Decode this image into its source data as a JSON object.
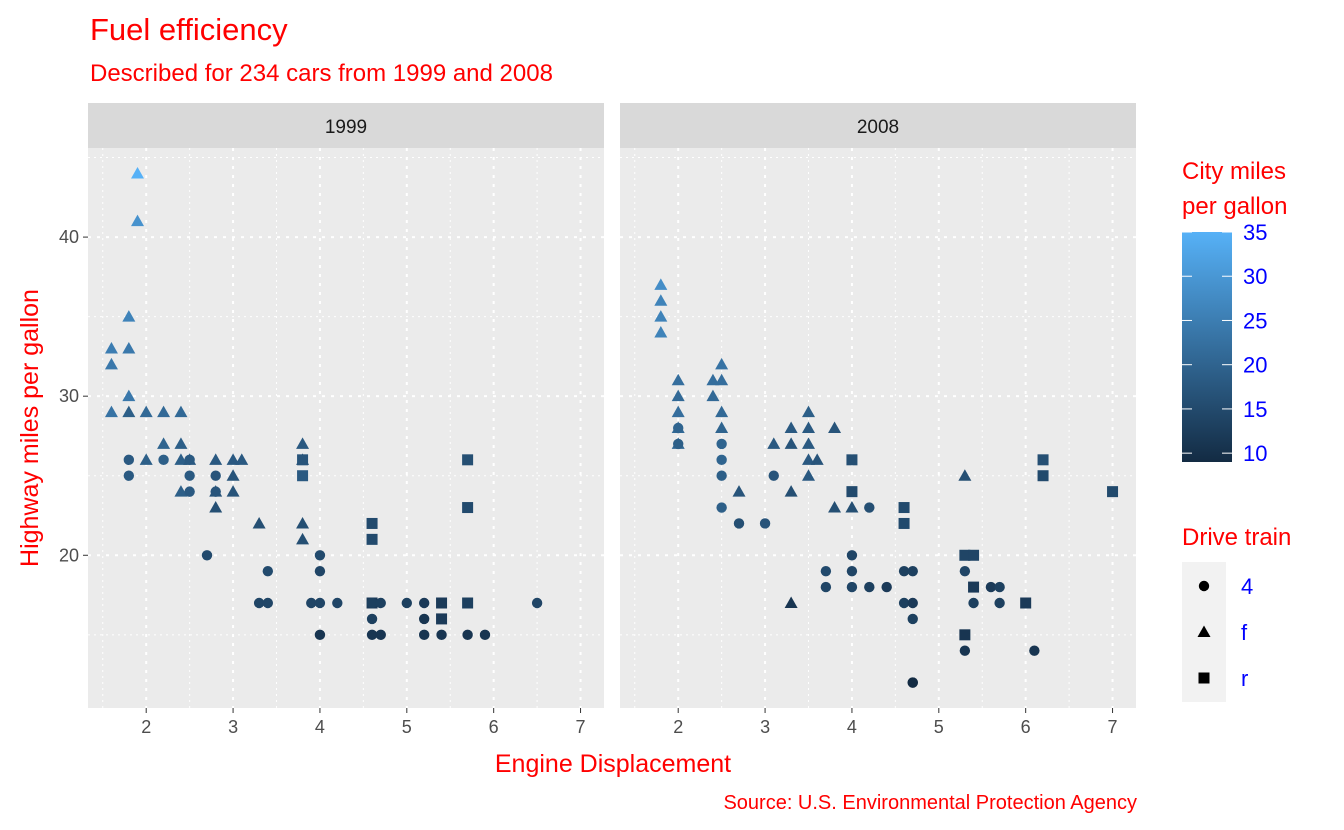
{
  "chart_data": {
    "type": "scatter",
    "title": "Fuel efficiency",
    "subtitle": "Described for 234 cars from 1999 and 2008",
    "xlabel": "Engine Displacement",
    "ylabel": "Highway miles per gallon",
    "caption": "Source: U.S. Environmental Protection Agency",
    "xlim": [
      1.6,
      7
    ],
    "ylim": [
      12,
      44
    ],
    "x_ticks": [
      2,
      3,
      4,
      5,
      6,
      7
    ],
    "y_ticks": [
      20,
      30,
      40
    ],
    "grid": true,
    "colors": {
      "title": "#FF0000",
      "legend_labels": "#0000FF",
      "low": "#132B43",
      "high": "#56B1F7",
      "panel": "#EBEBEB",
      "strip": "#D9D9D9"
    },
    "color_legend": {
      "title_line1": "City miles",
      "title_line2": "per gallon",
      "ticks": [
        10,
        15,
        20,
        25,
        30,
        35
      ],
      "range": [
        9,
        35
      ]
    },
    "shape_legend": {
      "title": "Drive train",
      "entries": [
        {
          "label": "4",
          "shape": "circle"
        },
        {
          "label": "f",
          "shape": "triangle"
        },
        {
          "label": "r",
          "shape": "square"
        }
      ]
    },
    "point_fields": [
      "displ",
      "hwy",
      "drv",
      "cty"
    ],
    "facets": [
      {
        "label": "1999",
        "points": [
          [
            1.9,
            44,
            "f",
            35
          ],
          [
            1.9,
            41,
            "f",
            29
          ],
          [
            1.8,
            35,
            "f",
            26
          ],
          [
            1.6,
            33,
            "f",
            25
          ],
          [
            1.8,
            33,
            "f",
            24
          ],
          [
            1.6,
            32,
            "f",
            24
          ],
          [
            1.8,
            30,
            "f",
            24
          ],
          [
            1.6,
            29,
            "f",
            23
          ],
          [
            1.8,
            29,
            "f",
            19
          ],
          [
            2.0,
            29,
            "f",
            21
          ],
          [
            2.2,
            29,
            "f",
            21
          ],
          [
            2.4,
            29,
            "f",
            21
          ],
          [
            2.2,
            27,
            "f",
            20
          ],
          [
            2.4,
            27,
            "f",
            19
          ],
          [
            1.8,
            26,
            "4",
            18
          ],
          [
            2.0,
            26,
            "f",
            19
          ],
          [
            2.2,
            26,
            "4",
            19
          ],
          [
            2.4,
            26,
            "f",
            19
          ],
          [
            2.5,
            26,
            "f",
            18
          ],
          [
            2.5,
            26,
            "4",
            18
          ],
          [
            2.8,
            26,
            "f",
            18
          ],
          [
            3.0,
            26,
            "f",
            18
          ],
          [
            3.1,
            26,
            "f",
            18
          ],
          [
            3.8,
            27,
            "f",
            18
          ],
          [
            3.8,
            26,
            "f",
            17
          ],
          [
            3.8,
            26,
            "r",
            17
          ],
          [
            1.8,
            25,
            "4",
            18
          ],
          [
            2.5,
            25,
            "4",
            18
          ],
          [
            2.8,
            25,
            "4",
            17
          ],
          [
            3.0,
            25,
            "f",
            17
          ],
          [
            3.8,
            25,
            "r",
            18
          ],
          [
            2.4,
            24,
            "f",
            19
          ],
          [
            2.5,
            24,
            "4",
            18
          ],
          [
            2.8,
            24,
            "f",
            17
          ],
          [
            2.8,
            24,
            "4",
            17
          ],
          [
            3.0,
            24,
            "f",
            17
          ],
          [
            2.8,
            23,
            "f",
            16
          ],
          [
            3.3,
            22,
            "f",
            16
          ],
          [
            3.8,
            22,
            "f",
            16
          ],
          [
            3.8,
            21,
            "f",
            16
          ],
          [
            2.7,
            20,
            "4",
            15
          ],
          [
            4.0,
            20,
            "4",
            15
          ],
          [
            3.4,
            19,
            "4",
            15
          ],
          [
            4.0,
            19,
            "4",
            14
          ],
          [
            3.3,
            17,
            "4",
            14
          ],
          [
            3.4,
            17,
            "4",
            14
          ],
          [
            3.9,
            17,
            "4",
            14
          ],
          [
            4.0,
            17,
            "4",
            14
          ],
          [
            4.2,
            17,
            "4",
            14
          ],
          [
            4.6,
            17,
            "r",
            12
          ],
          [
            4.6,
            17,
            "4",
            13
          ],
          [
            4.7,
            17,
            "4",
            13
          ],
          [
            5.0,
            17,
            "4",
            13
          ],
          [
            5.2,
            17,
            "4",
            12
          ],
          [
            5.4,
            17,
            "r",
            12
          ],
          [
            5.7,
            17,
            "r",
            13
          ],
          [
            6.5,
            17,
            "4",
            14
          ],
          [
            4.6,
            16,
            "4",
            13
          ],
          [
            5.2,
            16,
            "4",
            11
          ],
          [
            5.4,
            16,
            "r",
            12
          ],
          [
            4.0,
            15,
            "4",
            11
          ],
          [
            4.6,
            15,
            "4",
            11
          ],
          [
            4.7,
            15,
            "4",
            11
          ],
          [
            5.2,
            15,
            "4",
            11
          ],
          [
            5.4,
            15,
            "4",
            11
          ],
          [
            5.7,
            15,
            "4",
            11
          ],
          [
            5.9,
            15,
            "4",
            11
          ],
          [
            4.6,
            22,
            "r",
            15
          ],
          [
            4.6,
            21,
            "r",
            15
          ],
          [
            5.7,
            26,
            "r",
            16
          ],
          [
            5.7,
            23,
            "r",
            15
          ]
        ]
      },
      {
        "label": "2008",
        "points": [
          [
            1.8,
            37,
            "f",
            28
          ],
          [
            1.8,
            36,
            "f",
            26
          ],
          [
            1.8,
            35,
            "f",
            26
          ],
          [
            1.8,
            34,
            "f",
            26
          ],
          [
            2.0,
            31,
            "f",
            22
          ],
          [
            2.0,
            30,
            "f",
            21
          ],
          [
            2.0,
            29,
            "f",
            22
          ],
          [
            2.0,
            28,
            "f",
            21
          ],
          [
            2.0,
            28,
            "4",
            20
          ],
          [
            2.0,
            27,
            "f",
            21
          ],
          [
            2.0,
            27,
            "4",
            19
          ],
          [
            2.4,
            31,
            "f",
            22
          ],
          [
            2.4,
            30,
            "f",
            21
          ],
          [
            2.5,
            32,
            "f",
            23
          ],
          [
            2.5,
            31,
            "f",
            22
          ],
          [
            2.5,
            29,
            "f",
            21
          ],
          [
            2.5,
            28,
            "f",
            20
          ],
          [
            2.5,
            27,
            "4",
            20
          ],
          [
            2.5,
            26,
            "4",
            20
          ],
          [
            2.5,
            25,
            "4",
            19
          ],
          [
            2.5,
            23,
            "4",
            19
          ],
          [
            2.7,
            24,
            "f",
            17
          ],
          [
            2.7,
            22,
            "4",
            16
          ],
          [
            3.0,
            22,
            "4",
            17
          ],
          [
            3.1,
            25,
            "4",
            17
          ],
          [
            3.1,
            27,
            "f",
            18
          ],
          [
            3.3,
            28,
            "f",
            18
          ],
          [
            3.3,
            27,
            "f",
            17
          ],
          [
            3.3,
            24,
            "f",
            16
          ],
          [
            3.5,
            29,
            "f",
            19
          ],
          [
            3.5,
            28,
            "f",
            18
          ],
          [
            3.5,
            27,
            "f",
            18
          ],
          [
            3.5,
            26,
            "f",
            18
          ],
          [
            3.6,
            26,
            "f",
            17
          ],
          [
            3.5,
            25,
            "f",
            18
          ],
          [
            3.8,
            28,
            "f",
            17
          ],
          [
            3.8,
            23,
            "f",
            16
          ],
          [
            4.0,
            23,
            "f",
            16
          ],
          [
            4.2,
            23,
            "4",
            16
          ],
          [
            4.0,
            26,
            "r",
            16
          ],
          [
            4.0,
            24,
            "r",
            15
          ],
          [
            4.6,
            23,
            "r",
            15
          ],
          [
            4.6,
            22,
            "r",
            15
          ],
          [
            5.3,
            25,
            "f",
            16
          ],
          [
            6.2,
            26,
            "r",
            16
          ],
          [
            6.2,
            25,
            "r",
            15
          ],
          [
            7.0,
            24,
            "r",
            15
          ],
          [
            3.3,
            17,
            "f",
            11
          ],
          [
            3.7,
            19,
            "4",
            15
          ],
          [
            3.7,
            18,
            "4",
            14
          ],
          [
            4.0,
            20,
            "4",
            14
          ],
          [
            4.0,
            19,
            "4",
            14
          ],
          [
            4.0,
            18,
            "4",
            14
          ],
          [
            4.2,
            18,
            "4",
            13
          ],
          [
            4.4,
            18,
            "4",
            12
          ],
          [
            4.6,
            19,
            "4",
            13
          ],
          [
            4.7,
            19,
            "4",
            13
          ],
          [
            4.6,
            17,
            "4",
            13
          ],
          [
            4.7,
            17,
            "4",
            12
          ],
          [
            4.7,
            16,
            "4",
            13
          ],
          [
            4.7,
            12,
            "4",
            9
          ],
          [
            4.7,
            12,
            "4",
            9
          ],
          [
            5.3,
            20,
            "r",
            14
          ],
          [
            5.4,
            20,
            "r",
            14
          ],
          [
            5.3,
            19,
            "4",
            14
          ],
          [
            5.4,
            18,
            "r",
            12
          ],
          [
            5.6,
            18,
            "4",
            12
          ],
          [
            5.7,
            18,
            "4",
            13
          ],
          [
            5.4,
            17,
            "4",
            13
          ],
          [
            5.7,
            17,
            "4",
            13
          ],
          [
            6.0,
            17,
            "r",
            12
          ],
          [
            5.3,
            15,
            "r",
            11
          ],
          [
            5.3,
            14,
            "4",
            11
          ],
          [
            6.1,
            14,
            "4",
            11
          ]
        ]
      }
    ]
  }
}
